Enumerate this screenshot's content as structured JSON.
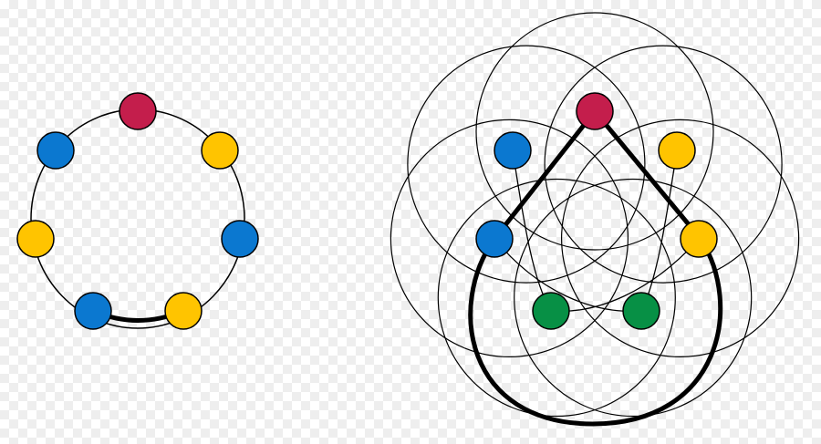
{
  "colors": {
    "red": "#c41e4c",
    "yellow": "#ffc400",
    "blue": "#0b78d0",
    "green": "#079045",
    "line": "#000000"
  },
  "left_diagram": {
    "nodes": [
      {
        "id": "top",
        "color": "red"
      },
      {
        "id": "upper-right",
        "color": "yellow"
      },
      {
        "id": "right",
        "color": "blue"
      },
      {
        "id": "lower-right",
        "color": "yellow"
      },
      {
        "id": "lower-left",
        "color": "blue"
      },
      {
        "id": "left",
        "color": "yellow"
      },
      {
        "id": "upper-left",
        "color": "blue"
      }
    ],
    "highlighted_arc": [
      "lower-left",
      "lower-right"
    ]
  },
  "right_diagram": {
    "circle_count": 7,
    "nodes": [
      {
        "id": "top",
        "color": "red"
      },
      {
        "id": "upper-right",
        "color": "yellow"
      },
      {
        "id": "right",
        "color": "yellow"
      },
      {
        "id": "lower-right",
        "color": "green"
      },
      {
        "id": "lower-left",
        "color": "green"
      },
      {
        "id": "left",
        "color": "blue"
      },
      {
        "id": "upper-left",
        "color": "blue"
      }
    ],
    "highlighted_loop": [
      "top",
      "right",
      "bottom",
      "left"
    ]
  }
}
